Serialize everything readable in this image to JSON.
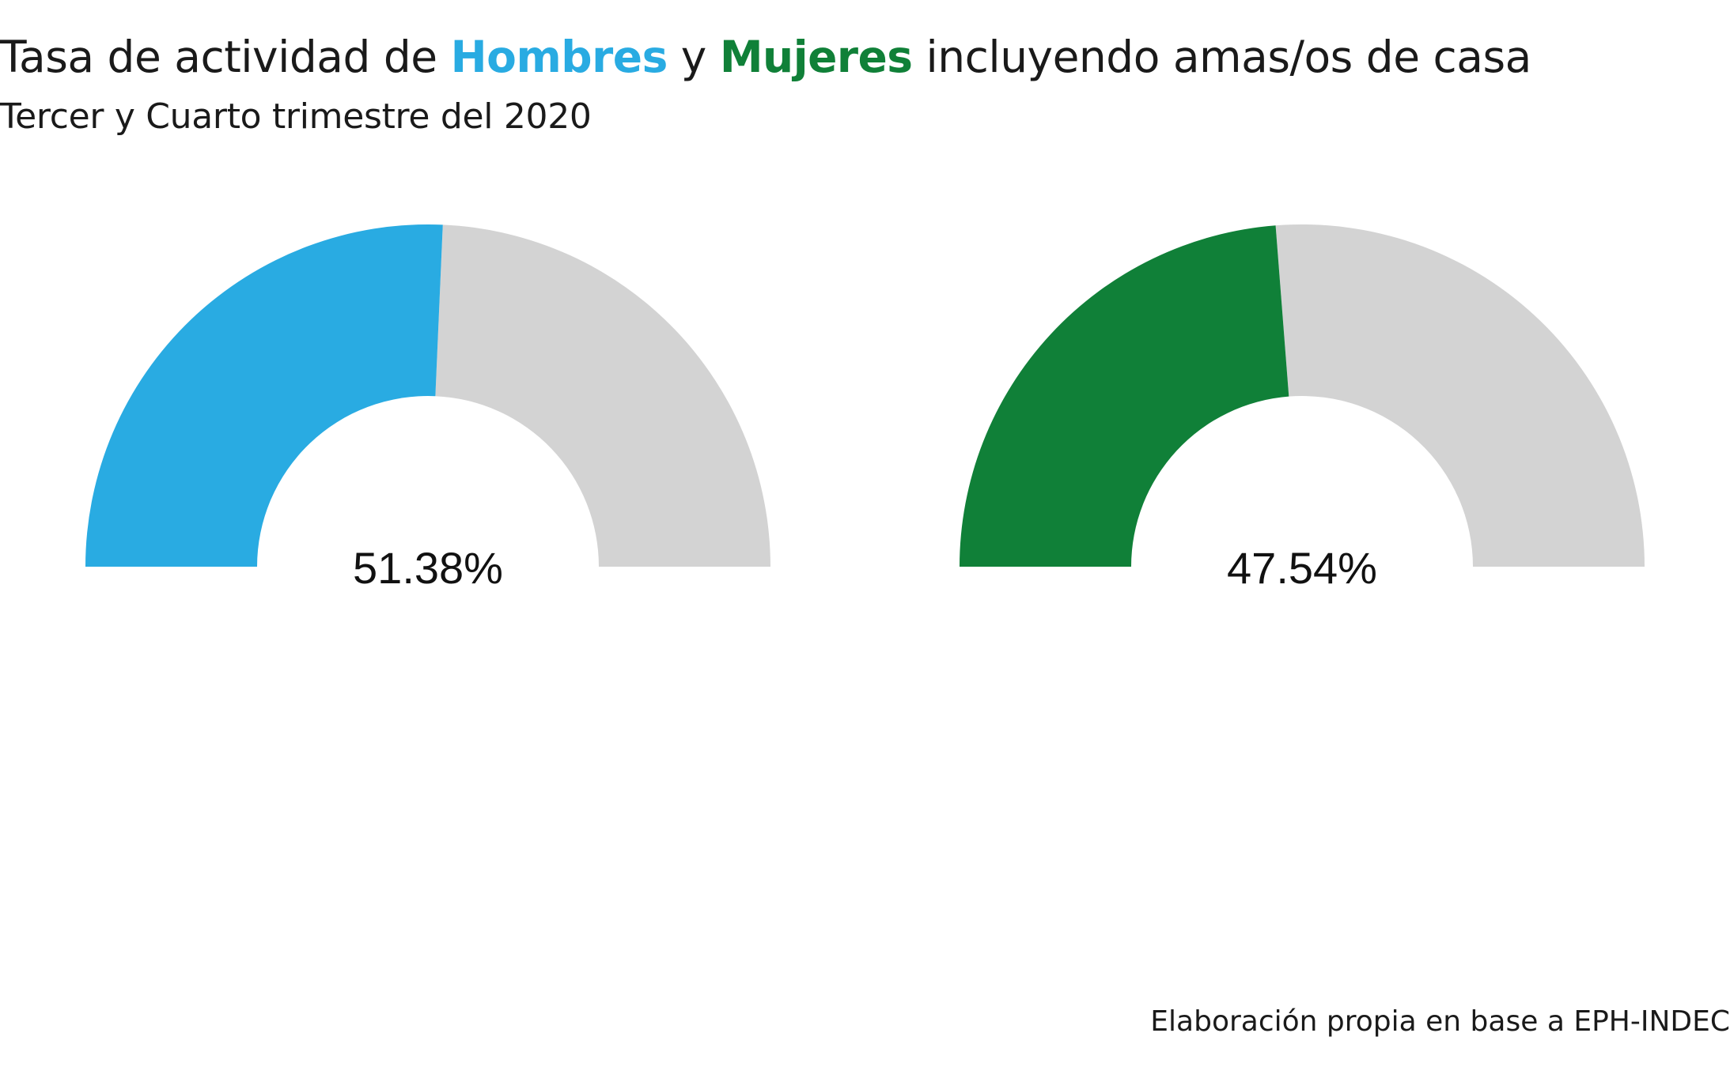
{
  "chart_data": {
    "type": "gauge",
    "title": {
      "before": "Tasa de actividad de ",
      "highlight_1": "Hombres",
      "between": " y ",
      "highlight_2": "Mujeres",
      "after": " incluyendo amas/os de casa"
    },
    "subtitle": "Tercer y Cuarto trimestre del 2020",
    "caption": "Elaboración propia en base a EPH-INDEC",
    "range": [
      0,
      100
    ],
    "track_color": "#d3d3d3",
    "gauges": [
      {
        "name": "Hombres",
        "value": 51.38,
        "label": "51.38%",
        "color": "#29abe2"
      },
      {
        "name": "Mujeres",
        "value": 47.54,
        "label": "47.54%",
        "color": "#108038"
      }
    ]
  }
}
